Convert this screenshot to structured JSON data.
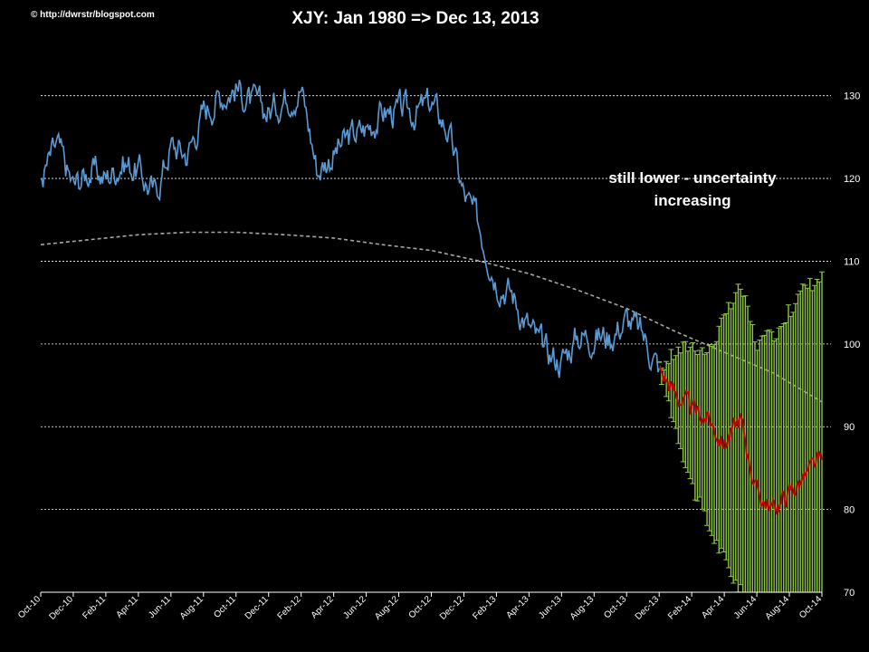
{
  "header": {
    "copyright": "© http://dwrstr/blogspot.com",
    "title": "XJY: Jan 1980  => Dec 13, 2013"
  },
  "annotation": {
    "line1": "still lower  - uncertainty",
    "line2": "increasing"
  },
  "colors": {
    "background": "#000000",
    "history": "#5b9bd5",
    "forecast": "#c00000",
    "bands": "#8dc63f",
    "trend": "#a6a6a6",
    "grid": "#ffffff"
  },
  "chart_data": {
    "type": "line",
    "title": "XJY: Jan 1980  => Dec 13, 2013",
    "xlabel": "",
    "ylabel": "",
    "ylim": [
      70,
      135
    ],
    "yticks": [
      70,
      80,
      90,
      100,
      110,
      120,
      130
    ],
    "ytick_labels": [
      "70",
      "80",
      "90",
      "100",
      "110",
      "120",
      "130"
    ],
    "grid": "horizontal dashed",
    "y_axis_position": "right",
    "x_range": [
      "2010-10",
      "2014-10"
    ],
    "x_ticks": [
      "Oct-10",
      "Dec-10",
      "Feb-11",
      "Apr-11",
      "Jun-11",
      "Aug-11",
      "Oct-11",
      "Dec-11",
      "Feb-12",
      "Apr-12",
      "Jun-12",
      "Aug-12",
      "Oct-12",
      "Dec-12",
      "Feb-13",
      "Apr-13",
      "Jun-13",
      "Aug-13",
      "Oct-13",
      "Dec-13",
      "Feb-14",
      "Apr-14",
      "Jun-14",
      "Aug-14",
      "Oct-14"
    ],
    "series": [
      {
        "kind": "history",
        "x": [
          "2010-10",
          "2010-11",
          "2010-12",
          "2011-01",
          "2011-02",
          "2011-03",
          "2011-04",
          "2011-05",
          "2011-06",
          "2011-07",
          "2011-08",
          "2011-09",
          "2011-10",
          "2011-11",
          "2011-12",
          "2012-01",
          "2012-02",
          "2012-03",
          "2012-04",
          "2012-05",
          "2012-06",
          "2012-07",
          "2012-08",
          "2012-09",
          "2012-10",
          "2012-11",
          "2012-12",
          "2013-01",
          "2013-02",
          "2013-03",
          "2013-04",
          "2013-05",
          "2013-06",
          "2013-07",
          "2013-08",
          "2013-09",
          "2013-10",
          "2013-11",
          "2013-12"
        ],
        "values": [
          120,
          124,
          119,
          121,
          120,
          122,
          121,
          118,
          124,
          123,
          128,
          130,
          131,
          129,
          128,
          130,
          131,
          121,
          123,
          125,
          126,
          128,
          128,
          128,
          129,
          126,
          118,
          114,
          108,
          106,
          102,
          99,
          98,
          101,
          101,
          101,
          103,
          101,
          97
        ]
      },
      {
        "kind": "forecast",
        "x": [
          "2013-12",
          "2014-01",
          "2014-02",
          "2014-03",
          "2014-04",
          "2014-05",
          "2014-06",
          "2014-07",
          "2014-08",
          "2014-09",
          "2014-10"
        ],
        "values": [
          97,
          94,
          92,
          91,
          88,
          91,
          82,
          80,
          82,
          84,
          86
        ],
        "lower": [
          97,
          90,
          83,
          78,
          74,
          70,
          68,
          68,
          68,
          68,
          68
        ],
        "upper": [
          97,
          99,
          100,
          99,
          103,
          107,
          100,
          101,
          104,
          107,
          108
        ]
      },
      {
        "kind": "trend",
        "x": [
          "2010-10",
          "2011-01",
          "2011-04",
          "2011-07",
          "2011-10",
          "2012-01",
          "2012-04",
          "2012-07",
          "2012-10",
          "2013-01",
          "2013-04",
          "2013-07",
          "2013-10",
          "2014-01",
          "2014-04",
          "2014-07",
          "2014-10"
        ],
        "values": [
          112,
          112.6,
          113.2,
          113.5,
          113.5,
          113.2,
          112.8,
          112,
          111.3,
          110,
          108.5,
          106.5,
          104.3,
          101.5,
          99,
          96.5,
          93
        ]
      }
    ]
  }
}
